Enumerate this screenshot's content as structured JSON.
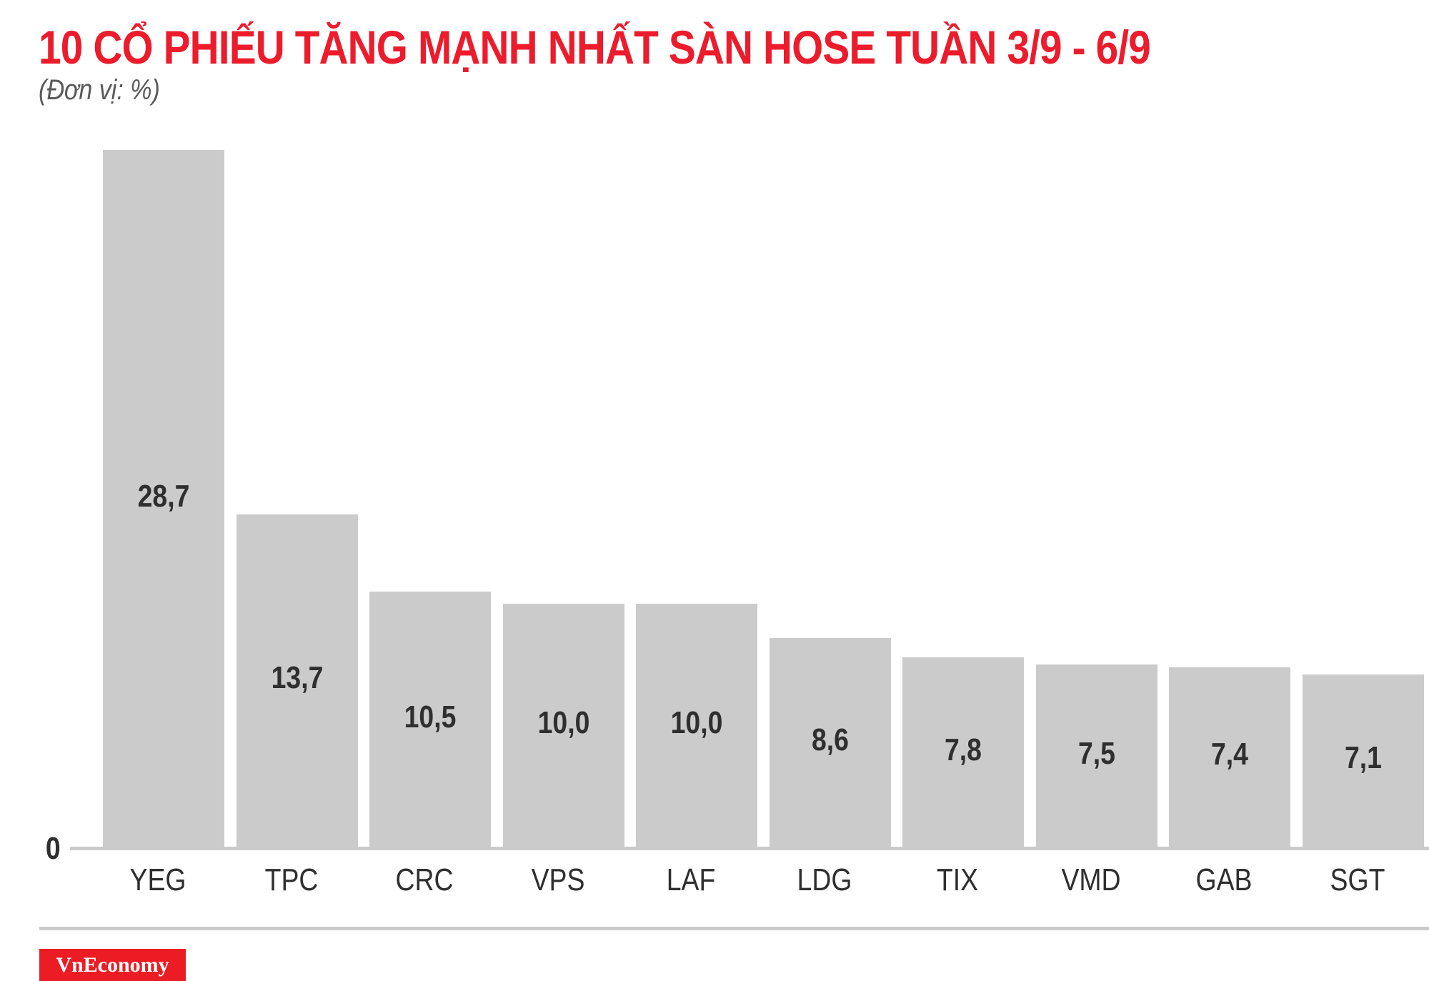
{
  "header": {
    "title": "10 CỔ PHIẾU TĂNG MẠNH NHẤT SÀN HOSE TUẦN 3/9 - 6/9",
    "subtitle": "(Đơn vị: %)"
  },
  "axis": {
    "zero_label": "0"
  },
  "bars": [
    {
      "label": "YEG",
      "value_label": "28,7"
    },
    {
      "label": "TPC",
      "value_label": "13,7"
    },
    {
      "label": "CRC",
      "value_label": "10,5"
    },
    {
      "label": "VPS",
      "value_label": "10,0"
    },
    {
      "label": "LAF",
      "value_label": "10,0"
    },
    {
      "label": "LDG",
      "value_label": "8,6"
    },
    {
      "label": "TIX",
      "value_label": "7,8"
    },
    {
      "label": "VMD",
      "value_label": "7,5"
    },
    {
      "label": "GAB",
      "value_label": "7,4"
    },
    {
      "label": "SGT",
      "value_label": "7,1"
    }
  ],
  "footer": {
    "brand": "VnEconomy"
  },
  "colors": {
    "title": "#ec1c2c",
    "bar": "#cccbcc",
    "text": "#2f2f2f",
    "brand_bg": "#ec1c24"
  },
  "chart_data": {
    "type": "bar",
    "title": "10 CỔ PHIẾU TĂNG MẠNH NHẤT SÀN HOSE TUẦN 3/9 - 6/9",
    "subtitle": "(Đơn vị: %)",
    "categories": [
      "YEG",
      "TPC",
      "CRC",
      "VPS",
      "LAF",
      "LDG",
      "TIX",
      "VMD",
      "GAB",
      "SGT"
    ],
    "values": [
      28.7,
      13.7,
      10.5,
      10.0,
      10.0,
      8.6,
      7.8,
      7.5,
      7.4,
      7.1
    ],
    "xlabel": "",
    "ylabel": "%",
    "ylim": [
      0,
      30
    ],
    "y_ticks": [
      0
    ],
    "grid": false,
    "legend": null,
    "data_labels": true
  }
}
